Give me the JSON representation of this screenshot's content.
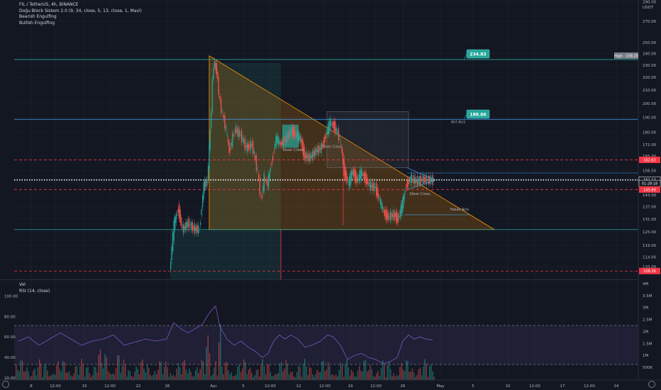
{
  "legend": {
    "symbol": "FIL / TetherUS, 4h, BINANCE",
    "indicators": [
      "Doğu Block Sistem 2.0 (9, 34, close, 5, 13, close, 1, Mavi)",
      "Bearish Engulfing",
      "Bullish Engulfing"
    ]
  },
  "rsi_legend": [
    "Vol",
    "RSI (14, close)"
  ],
  "chart_data": [
    {
      "type": "line",
      "title": "FIL / TetherUS, 4h, BINANCE",
      "currency_label": "USDT",
      "y_scale": "log",
      "ylim": [
        105,
        292
      ],
      "y_ticks": [
        "290.00",
        "270.00",
        "250.00",
        "240.00",
        "230.00",
        "220.00",
        "210.00",
        "200.00",
        "190.00",
        "180.00",
        "172.00",
        "165.00",
        "156.50",
        "150.00",
        "143.00",
        "137.00",
        "131.00",
        "125.00",
        "119.00",
        "114.00",
        "110.00"
      ],
      "x_tick_labels": [
        "8",
        "12:00",
        "15",
        "12:00",
        "22",
        "26",
        "Apr",
        "5",
        "12:00",
        "12",
        "12:00",
        "19",
        "12:00",
        "26",
        "May",
        "5",
        "10",
        "12:00",
        "17",
        "12:00",
        "24"
      ],
      "price_path": [
        {
          "x": 240,
          "y": 108.0
        },
        {
          "x": 246,
          "y": 128.0
        },
        {
          "x": 252,
          "y": 136.0
        },
        {
          "x": 258,
          "y": 126.0
        },
        {
          "x": 266,
          "y": 129.0
        },
        {
          "x": 274,
          "y": 126.5
        },
        {
          "x": 282,
          "y": 126.0
        },
        {
          "x": 288,
          "y": 148.0
        },
        {
          "x": 293,
          "y": 150.0
        },
        {
          "x": 297,
          "y": 180.0
        },
        {
          "x": 302,
          "y": 232.0
        },
        {
          "x": 306,
          "y": 226.0
        },
        {
          "x": 311,
          "y": 200.0
        },
        {
          "x": 318,
          "y": 185.0
        },
        {
          "x": 324,
          "y": 168.0
        },
        {
          "x": 332,
          "y": 182.0
        },
        {
          "x": 340,
          "y": 178.0
        },
        {
          "x": 348,
          "y": 170.0
        },
        {
          "x": 356,
          "y": 172.0
        },
        {
          "x": 364,
          "y": 156.0
        },
        {
          "x": 369,
          "y": 140.0
        },
        {
          "x": 373,
          "y": 152.0
        },
        {
          "x": 378,
          "y": 149.0
        },
        {
          "x": 384,
          "y": 162.0
        },
        {
          "x": 390,
          "y": 176.0
        },
        {
          "x": 396,
          "y": 172.0
        },
        {
          "x": 404,
          "y": 176.0
        },
        {
          "x": 412,
          "y": 181.0
        },
        {
          "x": 418,
          "y": 178.0
        },
        {
          "x": 424,
          "y": 176.0
        },
        {
          "x": 430,
          "y": 165.0
        },
        {
          "x": 438,
          "y": 164.0
        },
        {
          "x": 446,
          "y": 168.0
        },
        {
          "x": 454,
          "y": 170.0
        },
        {
          "x": 460,
          "y": 178.0
        },
        {
          "x": 466,
          "y": 186.0
        },
        {
          "x": 472,
          "y": 184.0
        },
        {
          "x": 480,
          "y": 176.0
        },
        {
          "x": 486,
          "y": 156.0
        },
        {
          "x": 492,
          "y": 149.0
        },
        {
          "x": 498,
          "y": 156.0
        },
        {
          "x": 504,
          "y": 151.0
        },
        {
          "x": 510,
          "y": 155.0
        },
        {
          "x": 516,
          "y": 152.0
        },
        {
          "x": 522,
          "y": 148.0
        },
        {
          "x": 530,
          "y": 147.0
        },
        {
          "x": 536,
          "y": 140.0
        },
        {
          "x": 542,
          "y": 134.0
        },
        {
          "x": 548,
          "y": 132.0
        },
        {
          "x": 556,
          "y": 133.0
        },
        {
          "x": 562,
          "y": 131.0
        },
        {
          "x": 568,
          "y": 138.0
        },
        {
          "x": 574,
          "y": 149.0
        },
        {
          "x": 580,
          "y": 152.0
        },
        {
          "x": 588,
          "y": 150.5
        },
        {
          "x": 596,
          "y": 151.5
        },
        {
          "x": 604,
          "y": 151.0
        },
        {
          "x": 612,
          "y": 151.12
        }
      ],
      "horizontal_levels": [
        {
          "value": 234.83,
          "label": "234.83",
          "color": "#26a69a",
          "style": "solid"
        },
        {
          "value": 188.66,
          "label": "188.66",
          "color": "#42a5f5",
          "style": "solid"
        },
        {
          "value": 162.63,
          "label": "162.63",
          "color": "#f23645",
          "style": "dashed"
        },
        {
          "value": 145.89,
          "label": "145.89",
          "color": "#f23645",
          "style": "dashed"
        },
        {
          "value": 108.26,
          "label": "108.26",
          "color": "#f23645",
          "style": "dashed"
        },
        {
          "value": 126.0,
          "label": "",
          "color": "#26a69a",
          "style": "solid"
        },
        {
          "value": 151.12,
          "label": "151.12",
          "color": "#ffffff",
          "style": "dotted"
        }
      ],
      "annotations": [
        {
          "text": "Silver Cross",
          "x": 413,
          "y": 168
        },
        {
          "text": "Silver Cross",
          "x": 468,
          "y": 170
        },
        {
          "text": "Silver Cross",
          "x": 592,
          "y": 143
        },
        {
          "text": "Ant Acıs",
          "x": 646,
          "y": 186
        },
        {
          "text": "Hatalı Acis",
          "x": 648,
          "y": 135
        }
      ],
      "callouts": [
        {
          "text": "234.83",
          "x": 672,
          "y": 248
        },
        {
          "text": "188.66",
          "x": 672,
          "y": 190
        }
      ],
      "price_tags": [
        {
          "text": "High · 238.20",
          "value": 238.2,
          "color": "#787b86"
        },
        {
          "text": "162.63",
          "value": 162.63,
          "color": "#f23645"
        },
        {
          "text": "151.12",
          "value": 151.12,
          "color": "#ffffff"
        },
        {
          "text": "01:28:18",
          "value": 149.2,
          "color": "#ffffff"
        },
        {
          "text": "145.89",
          "value": 145.89,
          "color": "#f23645"
        },
        {
          "text": "108.26",
          "value": 108.26,
          "color": "#f23645"
        }
      ]
    },
    {
      "type": "line",
      "title": "RSI (14, close)",
      "ylim": [
        18,
        112
      ],
      "y_ticks": [
        "100.00",
        "80.00",
        "60.00",
        "40.00",
        "20.00"
      ],
      "bands": {
        "upper": 70,
        "lower": 30
      },
      "volume_ticks": [
        "4M",
        "3.5M",
        "3M",
        "2.5M",
        "2M",
        "1.5M",
        "1M",
        "500K"
      ],
      "rsi": [
        {
          "x": 26,
          "y": 56
        },
        {
          "x": 40,
          "y": 60
        },
        {
          "x": 55,
          "y": 52
        },
        {
          "x": 70,
          "y": 58
        },
        {
          "x": 85,
          "y": 64
        },
        {
          "x": 100,
          "y": 58
        },
        {
          "x": 115,
          "y": 52
        },
        {
          "x": 130,
          "y": 56
        },
        {
          "x": 145,
          "y": 58
        },
        {
          "x": 160,
          "y": 62
        },
        {
          "x": 175,
          "y": 52
        },
        {
          "x": 190,
          "y": 55
        },
        {
          "x": 205,
          "y": 58
        },
        {
          "x": 220,
          "y": 56
        },
        {
          "x": 235,
          "y": 58
        },
        {
          "x": 245,
          "y": 74
        },
        {
          "x": 255,
          "y": 68
        },
        {
          "x": 265,
          "y": 64
        },
        {
          "x": 275,
          "y": 68
        },
        {
          "x": 285,
          "y": 72
        },
        {
          "x": 292,
          "y": 80
        },
        {
          "x": 298,
          "y": 86
        },
        {
          "x": 304,
          "y": 90
        },
        {
          "x": 310,
          "y": 70
        },
        {
          "x": 320,
          "y": 58
        },
        {
          "x": 330,
          "y": 52
        },
        {
          "x": 340,
          "y": 56
        },
        {
          "x": 350,
          "y": 50
        },
        {
          "x": 360,
          "y": 46
        },
        {
          "x": 370,
          "y": 40
        },
        {
          "x": 378,
          "y": 44
        },
        {
          "x": 386,
          "y": 56
        },
        {
          "x": 394,
          "y": 62
        },
        {
          "x": 402,
          "y": 58
        },
        {
          "x": 410,
          "y": 62
        },
        {
          "x": 420,
          "y": 58
        },
        {
          "x": 430,
          "y": 50
        },
        {
          "x": 440,
          "y": 52
        },
        {
          "x": 452,
          "y": 56
        },
        {
          "x": 462,
          "y": 62
        },
        {
          "x": 470,
          "y": 60
        },
        {
          "x": 480,
          "y": 52
        },
        {
          "x": 490,
          "y": 38
        },
        {
          "x": 500,
          "y": 42
        },
        {
          "x": 510,
          "y": 44
        },
        {
          "x": 520,
          "y": 40
        },
        {
          "x": 530,
          "y": 38
        },
        {
          "x": 540,
          "y": 34
        },
        {
          "x": 550,
          "y": 36
        },
        {
          "x": 560,
          "y": 40
        },
        {
          "x": 568,
          "y": 56
        },
        {
          "x": 576,
          "y": 62
        },
        {
          "x": 584,
          "y": 58
        },
        {
          "x": 592,
          "y": 60
        },
        {
          "x": 600,
          "y": 58
        },
        {
          "x": 610,
          "y": 57
        }
      ]
    }
  ],
  "colors": {
    "background": "#131722",
    "grid": "#1e222d",
    "text": "#b2b5be",
    "up": "#26a69a",
    "down": "#ef5350",
    "rsi_line": "#7e57c2",
    "rsi_band": "#7e57c21f",
    "triangle_fill": "#ff980033",
    "triangle_stroke": "#ff9800"
  }
}
